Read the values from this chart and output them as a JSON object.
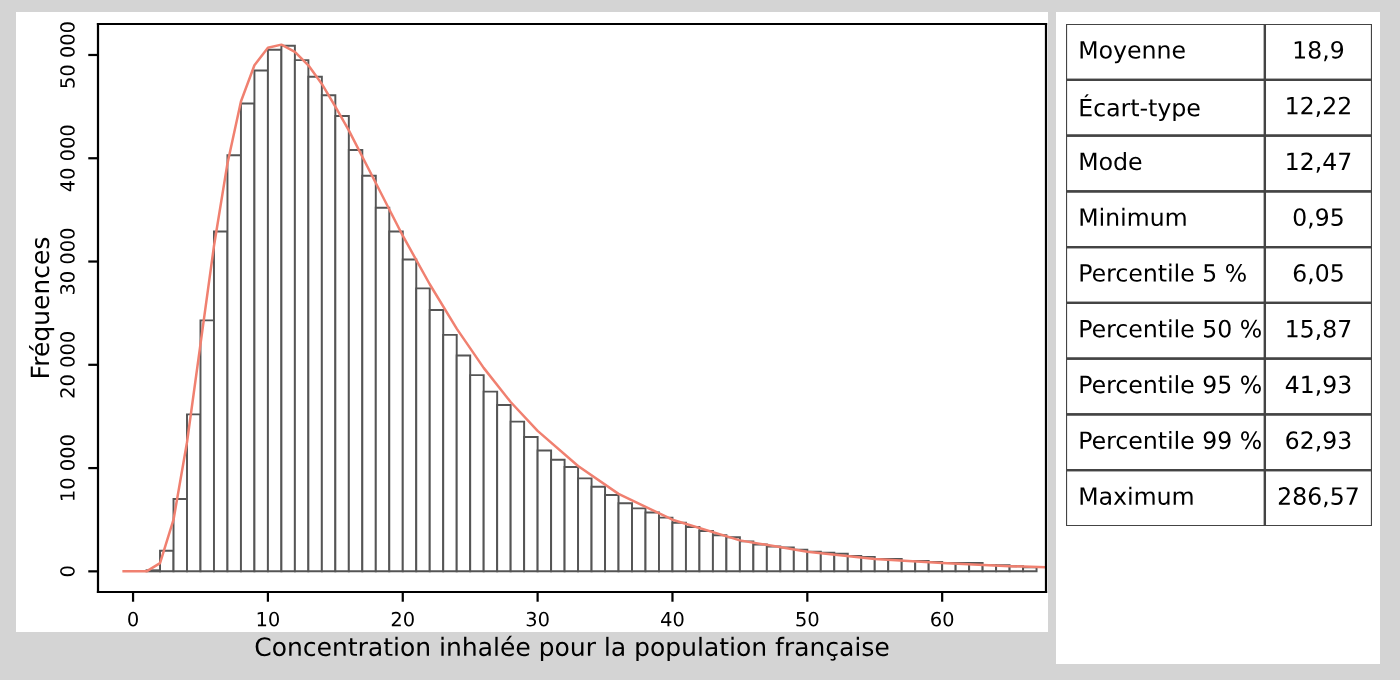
{
  "chart_data": [
    {
      "type": "histogram",
      "xlabel": "Concentration inhalée pour la population française",
      "ylabel": "Fréquences",
      "bins": [
        1,
        2,
        3,
        4,
        5,
        6,
        7,
        8,
        9,
        10,
        11,
        12,
        13,
        14,
        15,
        16,
        17,
        18,
        19,
        20,
        21,
        22,
        23,
        24,
        25,
        26,
        27,
        28,
        29,
        30,
        31,
        32,
        33,
        34,
        35,
        36,
        37,
        38,
        39,
        40,
        41,
        42,
        43,
        44,
        45,
        46,
        47,
        48,
        49,
        50,
        51,
        52,
        53,
        54,
        55,
        56,
        57,
        58,
        59,
        60,
        61,
        62,
        63,
        64,
        65,
        66,
        67
      ],
      "values": [
        100,
        2000,
        7000,
        15200,
        24300,
        32900,
        40300,
        45300,
        48500,
        50500,
        50900,
        49500,
        47900,
        46100,
        44100,
        40800,
        38300,
        35200,
        32900,
        30200,
        27400,
        25300,
        22900,
        20900,
        19000,
        17400,
        16100,
        14500,
        13000,
        11700,
        10800,
        10100,
        9000,
        8200,
        7400,
        6600,
        6100,
        5700,
        5200,
        4700,
        4300,
        3900,
        3500,
        3300,
        2900,
        2600,
        2400,
        2300,
        2100,
        1900,
        1800,
        1700,
        1500,
        1400,
        1200,
        1200,
        1000,
        1000,
        900,
        800,
        800,
        800,
        600,
        600,
        500,
        400
      ],
      "color": "#ffffff",
      "series": [
        {
          "type": "line",
          "color": "#f08070",
          "x": [
            -0.7,
            1,
            2,
            3,
            4,
            5,
            6,
            7,
            8,
            9,
            10,
            11,
            12,
            13,
            14,
            15,
            16,
            18,
            20,
            22,
            24,
            26,
            28,
            30,
            33,
            36,
            40,
            45,
            50,
            55,
            60,
            65,
            67.7
          ],
          "values": [
            0,
            0,
            800,
            5000,
            12500,
            22000,
            31500,
            39500,
            45500,
            49000,
            50700,
            51000,
            50300,
            49000,
            47200,
            45000,
            42700,
            37600,
            32500,
            27800,
            23500,
            19700,
            16400,
            13600,
            10200,
            7500,
            5000,
            3000,
            1900,
            1200,
            800,
            500,
            400
          ]
        }
      ],
      "xlim": [
        -2.6,
        67.7
      ],
      "ylim": [
        -2000,
        53000
      ],
      "xticks": [
        0,
        10,
        20,
        30,
        40,
        50,
        60
      ],
      "yticks": [
        0,
        {
          "value": 10000,
          "label": "10 000"
        },
        {
          "value": 20000,
          "label": "20 000"
        },
        {
          "value": 30000,
          "label": "30 000"
        },
        {
          "value": 40000,
          "label": "40 000"
        },
        {
          "value": 50000,
          "label": "50 000"
        }
      ],
      "grid": false,
      "legend": false
    },
    {
      "type": "other",
      "annotations": [
        "Moyenne",
        "18,9",
        "Écart-type",
        "12,22",
        "Mode",
        "12,47",
        "Minimum",
        "0,95",
        "Percentile 5 %",
        "6,05",
        "Percentile 50 %",
        "15,87",
        "Percentile 95 %",
        "41,93",
        "Percentile 99 %",
        "62,93",
        "Maximum",
        "286,57"
      ]
    }
  ]
}
